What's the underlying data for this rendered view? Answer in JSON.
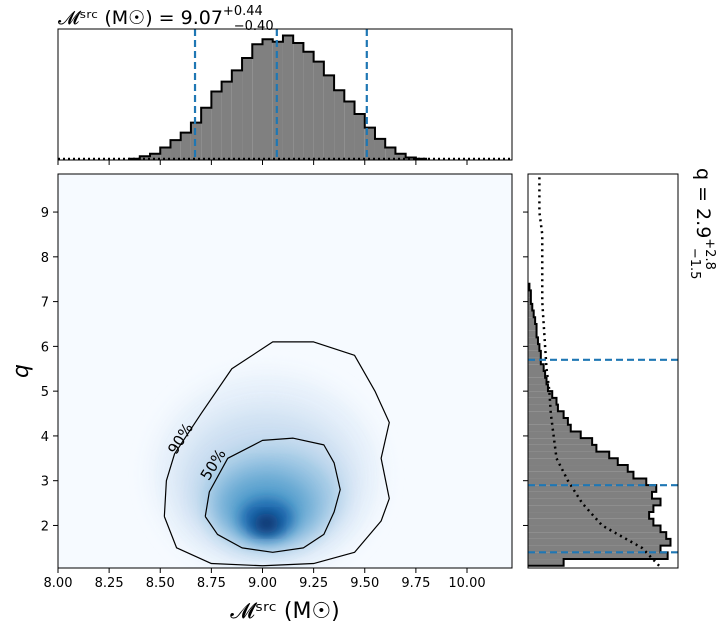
{
  "chart_data": [
    {
      "type": "heatmap",
      "panel": "joint",
      "xlabel": "𝓜ˢʳᶜ (M☉)",
      "ylabel": "q",
      "xlim": [
        8.0,
        10.22
      ],
      "ylim": [
        1.05,
        9.85
      ],
      "x_ticks": [
        8.0,
        8.25,
        8.5,
        8.75,
        9.0,
        9.25,
        9.5,
        9.75,
        10.0
      ],
      "x_tick_labels": [
        "8.00",
        "8.25",
        "8.50",
        "8.75",
        "9.00",
        "9.25",
        "9.50",
        "9.75",
        "10.00"
      ],
      "y_ticks": [
        2,
        3,
        4,
        5,
        6,
        7,
        8,
        9
      ],
      "y_tick_labels": [
        "2",
        "3",
        "4",
        "5",
        "6",
        "7",
        "8",
        "9"
      ],
      "colormap": "Blues",
      "density_peak": {
        "x": 9.02,
        "y": 2.05
      },
      "contours": [
        {
          "label": "50%",
          "label_pos": {
            "x": 8.78,
            "y": 3.3
          },
          "points": [
            [
              8.72,
              2.2
            ],
            [
              8.74,
              2.75
            ],
            [
              8.83,
              3.5
            ],
            [
              9.0,
              3.9
            ],
            [
              9.15,
              3.95
            ],
            [
              9.3,
              3.8
            ],
            [
              9.35,
              3.4
            ],
            [
              9.38,
              2.8
            ],
            [
              9.35,
              2.3
            ],
            [
              9.3,
              1.8
            ],
            [
              9.2,
              1.5
            ],
            [
              9.05,
              1.4
            ],
            [
              8.9,
              1.5
            ],
            [
              8.78,
              1.8
            ],
            [
              8.72,
              2.2
            ]
          ]
        },
        {
          "label": "90%",
          "label_pos": {
            "x": 8.62,
            "y": 3.88
          },
          "points": [
            [
              8.52,
              2.2
            ],
            [
              8.53,
              3.0
            ],
            [
              8.57,
              3.6
            ],
            [
              8.7,
              4.5
            ],
            [
              8.85,
              5.5
            ],
            [
              9.05,
              6.1
            ],
            [
              9.25,
              6.1
            ],
            [
              9.45,
              5.8
            ],
            [
              9.55,
              5.0
            ],
            [
              9.62,
              4.3
            ],
            [
              9.58,
              3.5
            ],
            [
              9.62,
              2.6
            ],
            [
              9.58,
              2.1
            ],
            [
              9.45,
              1.4
            ],
            [
              9.25,
              1.15
            ],
            [
              9.0,
              1.1
            ],
            [
              8.75,
              1.15
            ],
            [
              8.58,
              1.5
            ],
            [
              8.52,
              2.2
            ]
          ]
        }
      ]
    },
    {
      "type": "bar",
      "panel": "top-marginal",
      "title_main": "𝓜ˢʳᶜ (M☉) = 9.07",
      "title_sup": "+0.44",
      "title_sub": "−0.40",
      "median": 9.07,
      "lower": 8.67,
      "upper": 9.51,
      "bin_width": 0.05,
      "bin_starts": [
        8.35,
        8.4,
        8.45,
        8.5,
        8.55,
        8.6,
        8.65,
        8.7,
        8.75,
        8.8,
        8.85,
        8.9,
        8.95,
        9.0,
        9.05,
        9.1,
        9.15,
        9.2,
        9.25,
        9.3,
        9.35,
        9.4,
        9.45,
        9.5,
        9.55,
        9.6,
        9.65,
        9.7,
        9.75
      ],
      "values": [
        0.01,
        0.03,
        0.05,
        0.1,
        0.16,
        0.22,
        0.3,
        0.42,
        0.55,
        0.63,
        0.72,
        0.82,
        0.93,
        0.97,
        0.95,
        1.0,
        0.94,
        0.87,
        0.79,
        0.68,
        0.56,
        0.47,
        0.37,
        0.26,
        0.17,
        0.1,
        0.05,
        0.02,
        0.01
      ],
      "prior_level": 0.01
    },
    {
      "type": "bar",
      "panel": "right-marginal",
      "orientation": "horizontal",
      "title_main": "q = 2.9",
      "title_sup": "+2.8",
      "title_sub": "−1.5",
      "median": 2.9,
      "lower": 1.4,
      "upper": 5.7,
      "bin_width": 0.15,
      "bin_starts": [
        1.1,
        1.25,
        1.4,
        1.55,
        1.7,
        1.85,
        2.0,
        2.15,
        2.3,
        2.45,
        2.6,
        2.75,
        2.9,
        3.05,
        3.2,
        3.35,
        3.5,
        3.65,
        3.8,
        3.95,
        4.1,
        4.25,
        4.4,
        4.55,
        4.7,
        4.85,
        5.0,
        5.15,
        5.3,
        5.45,
        5.6,
        5.75,
        5.9,
        6.05,
        6.2,
        6.35,
        6.5,
        6.65,
        6.8,
        6.95,
        7.1,
        7.25
      ],
      "values": [
        0.25,
        0.98,
        0.93,
        1.0,
        0.97,
        0.93,
        0.88,
        0.85,
        0.88,
        0.93,
        0.87,
        0.9,
        0.83,
        0.74,
        0.7,
        0.63,
        0.57,
        0.48,
        0.45,
        0.37,
        0.3,
        0.28,
        0.25,
        0.21,
        0.2,
        0.17,
        0.14,
        0.13,
        0.12,
        0.11,
        0.09,
        0.09,
        0.08,
        0.07,
        0.06,
        0.06,
        0.05,
        0.04,
        0.03,
        0.02,
        0.02,
        0.01
      ],
      "prior_q": [
        1.1,
        1.5,
        2.0,
        2.5,
        3.0,
        3.5,
        4.0,
        4.5,
        5.0,
        5.5,
        6.0,
        6.5,
        7.0,
        7.5,
        8.0,
        8.5,
        9.0,
        9.5,
        9.85
      ],
      "prior_values": [
        0.92,
        0.8,
        0.52,
        0.38,
        0.28,
        0.2,
        0.18,
        0.16,
        0.15,
        0.13,
        0.12,
        0.11,
        0.1,
        0.1,
        0.1,
        0.1,
        0.08,
        0.08,
        0.08
      ]
    }
  ]
}
